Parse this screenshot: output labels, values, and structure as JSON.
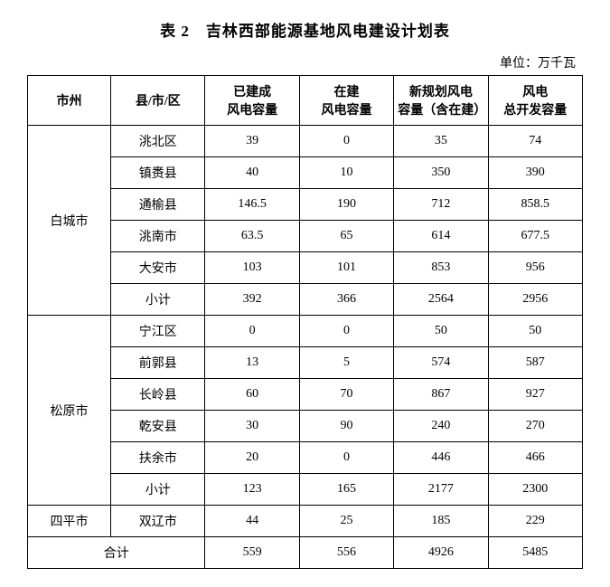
{
  "title": "表 2　吉林西部能源基地风电建设计划表",
  "unit": "单位：万千瓦",
  "headers": {
    "city": "市州",
    "county": "县/市/区",
    "built": "已建成\n风电容量",
    "building": "在建\n风电容量",
    "planned": "新规划风电\n容量（含在建）",
    "total": "风电\n总开发容量"
  },
  "groups": [
    {
      "city": "白城市",
      "rows": [
        {
          "county": "洮北区",
          "built": "39",
          "building": "0",
          "planned": "35",
          "total": "74"
        },
        {
          "county": "镇赉县",
          "built": "40",
          "building": "10",
          "planned": "350",
          "total": "390"
        },
        {
          "county": "通榆县",
          "built": "146.5",
          "building": "190",
          "planned": "712",
          "total": "858.5"
        },
        {
          "county": "洮南市",
          "built": "63.5",
          "building": "65",
          "planned": "614",
          "total": "677.5"
        },
        {
          "county": "大安市",
          "built": "103",
          "building": "101",
          "planned": "853",
          "total": "956"
        },
        {
          "county": "小计",
          "built": "392",
          "building": "366",
          "planned": "2564",
          "total": "2956"
        }
      ]
    },
    {
      "city": "松原市",
      "rows": [
        {
          "county": "宁江区",
          "built": "0",
          "building": "0",
          "planned": "50",
          "total": "50"
        },
        {
          "county": "前郭县",
          "built": "13",
          "building": "5",
          "planned": "574",
          "total": "587"
        },
        {
          "county": "长岭县",
          "built": "60",
          "building": "70",
          "planned": "867",
          "total": "927"
        },
        {
          "county": "乾安县",
          "built": "30",
          "building": "90",
          "planned": "240",
          "total": "270"
        },
        {
          "county": "扶余市",
          "built": "20",
          "building": "0",
          "planned": "446",
          "total": "466"
        },
        {
          "county": "小计",
          "built": "123",
          "building": "165",
          "planned": "2177",
          "total": "2300"
        }
      ]
    },
    {
      "city": "四平市",
      "rows": [
        {
          "county": "双辽市",
          "built": "44",
          "building": "25",
          "planned": "185",
          "total": "229"
        }
      ]
    }
  ],
  "totalRow": {
    "label": "合计",
    "built": "559",
    "building": "556",
    "planned": "4926",
    "total": "5485"
  },
  "styling": {
    "backgroundColor": "#ffffff",
    "borderColor": "#000000",
    "fontSize": 14,
    "titleFontSize": 17,
    "cellPadding": 7
  }
}
